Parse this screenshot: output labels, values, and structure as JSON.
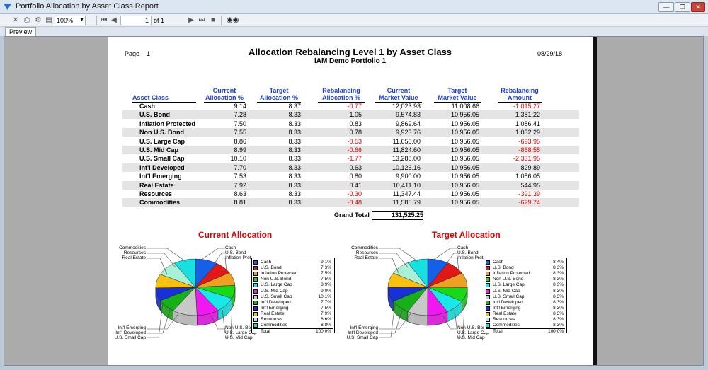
{
  "window": {
    "title": "Portfolio Allocation by Asset Class Report"
  },
  "toolbar": {
    "zoom": "100%",
    "page": "1",
    "of": "of 1"
  },
  "tab": {
    "label": "Preview"
  },
  "report": {
    "page_label": "Page",
    "page_num": "1",
    "date": "08/29/18",
    "title": "Allocation Rebalancing Level 1 by Asset Class",
    "subtitle": "IAM Demo Portfolio 1",
    "headers": {
      "asset": "Asset Class",
      "cur_a": "Current",
      "cur_b": "Allocation %",
      "tgt_a": "Target",
      "tgt_b": "Allocation %",
      "reb_a": "Rebalancing",
      "reb_b": "Allocation %",
      "cmv_a": "Current",
      "cmv_b": "Market Value",
      "tmv_a": "Target",
      "tmv_b": "Market Value",
      "ram_a": "Rebalancing",
      "ram_b": "Amount"
    },
    "rows": [
      {
        "asset": "Cash",
        "cur": "9.14",
        "tgt": "8.37",
        "reb": "-0.77",
        "cmv": "12,023.93",
        "tmv": "11,008.66",
        "amt": "-1,015.27"
      },
      {
        "asset": "U.S. Bond",
        "cur": "7.28",
        "tgt": "8.33",
        "reb": "1.05",
        "cmv": "9,574.83",
        "tmv": "10,956.05",
        "amt": "1,381.22"
      },
      {
        "asset": "Inflation Protected",
        "cur": "7.50",
        "tgt": "8.33",
        "reb": "0.83",
        "cmv": "9,869.64",
        "tmv": "10,956.05",
        "amt": "1,086.41"
      },
      {
        "asset": "Non U.S. Bond",
        "cur": "7.55",
        "tgt": "8.33",
        "reb": "0.78",
        "cmv": "9,923.76",
        "tmv": "10,956.05",
        "amt": "1,032.29"
      },
      {
        "asset": "U.S. Large Cap",
        "cur": "8.86",
        "tgt": "8.33",
        "reb": "-0.53",
        "cmv": "11,650.00",
        "tmv": "10,956.05",
        "amt": "-693.95"
      },
      {
        "asset": "U.S. Mid Cap",
        "cur": "8.99",
        "tgt": "8.33",
        "reb": "-0.66",
        "cmv": "11,824.60",
        "tmv": "10,956.05",
        "amt": "-868.55"
      },
      {
        "asset": "U.S. Small Cap",
        "cur": "10.10",
        "tgt": "8.33",
        "reb": "-1.77",
        "cmv": "13,288.00",
        "tmv": "10,956.05",
        "amt": "-2,331.95"
      },
      {
        "asset": "Int'l Developed",
        "cur": "7.70",
        "tgt": "8.33",
        "reb": "0.63",
        "cmv": "10,126.16",
        "tmv": "10,956.05",
        "amt": "829.89"
      },
      {
        "asset": "Int'l Emerging",
        "cur": "7.53",
        "tgt": "8.33",
        "reb": "0.80",
        "cmv": "9,900.00",
        "tmv": "10,956.05",
        "amt": "1,056.05"
      },
      {
        "asset": "Real Estate",
        "cur": "7.92",
        "tgt": "8.33",
        "reb": "0.41",
        "cmv": "10,411.10",
        "tmv": "10,956.05",
        "amt": "544.95"
      },
      {
        "asset": "Resources",
        "cur": "8.63",
        "tgt": "8.33",
        "reb": "-0.30",
        "cmv": "11,347.44",
        "tmv": "10,956.05",
        "amt": "-391.39"
      },
      {
        "asset": "Commodities",
        "cur": "8.81",
        "tgt": "8.33",
        "reb": "-0.48",
        "cmv": "11,585.79",
        "tmv": "10,956.05",
        "amt": "-629.74"
      }
    ],
    "grand_total_label": "Grand Total",
    "grand_total": "131,525.25"
  },
  "chart_data": [
    {
      "type": "pie",
      "title": "Current Allocation",
      "categories": [
        "Cash",
        "U.S. Bond",
        "Inflation Protected",
        "Non U.S. Bond",
        "U.S. Large Cap",
        "U.S. Mid Cap",
        "U.S. Small Cap",
        "Int'l Developed",
        "Int'l Emerging",
        "Real Estate",
        "Resources",
        "Commodities"
      ],
      "values": [
        9.1,
        7.3,
        7.5,
        7.5,
        8.9,
        9.0,
        10.1,
        7.7,
        7.5,
        7.9,
        8.6,
        8.8
      ],
      "labels": [
        "9.1%",
        "7.3%",
        "7.5%",
        "7.5%",
        "8.9%",
        "9.0%",
        "10.1%",
        "7.7%",
        "7.5%",
        "7.9%",
        "8.6%",
        "8.8%"
      ],
      "total_label": "Total",
      "total": "100.0%",
      "legend_position": "right"
    },
    {
      "type": "pie",
      "title": "Target Allocation",
      "categories": [
        "Cash",
        "U.S. Bond",
        "Inflation Protected",
        "Non U.S. Bond",
        "U.S. Large Cap",
        "U.S. Mid Cap",
        "U.S. Small Cap",
        "Int'l Developed",
        "Int'l Emerging",
        "Real Estate",
        "Resources",
        "Commodities"
      ],
      "values": [
        8.4,
        8.3,
        8.3,
        8.3,
        8.3,
        8.3,
        8.3,
        8.3,
        8.3,
        8.3,
        8.3,
        8.3
      ],
      "labels": [
        "8.4%",
        "8.3%",
        "8.3%",
        "8.3%",
        "8.3%",
        "8.3%",
        "8.3%",
        "8.3%",
        "8.3%",
        "8.3%",
        "8.3%",
        "8.3%"
      ],
      "total_label": "Total:",
      "total": "100.0%",
      "legend_position": "right"
    }
  ],
  "pie_colors": [
    "#1560e8",
    "#e01818",
    "#f0a020",
    "#18d818",
    "#18e8e8",
    "#f018f0",
    "#c8c8c8",
    "#18b018",
    "#1830d8",
    "#f8c010",
    "#a8f0d8",
    "#18e0e0"
  ],
  "pie_callouts": {
    "left": [
      "Commodities",
      "Resources",
      "Real Estate"
    ],
    "right_top": [
      "Cash",
      "U.S. Bond",
      "Inflation Prot"
    ],
    "left_bottom": [
      "Int'l Emerging",
      "Int'l Developed",
      "U.S. Small Cap"
    ],
    "right_bottom": [
      "Non U.S. Bond",
      "U.S. Large Cap",
      "U.S. Mid Cap"
    ]
  }
}
